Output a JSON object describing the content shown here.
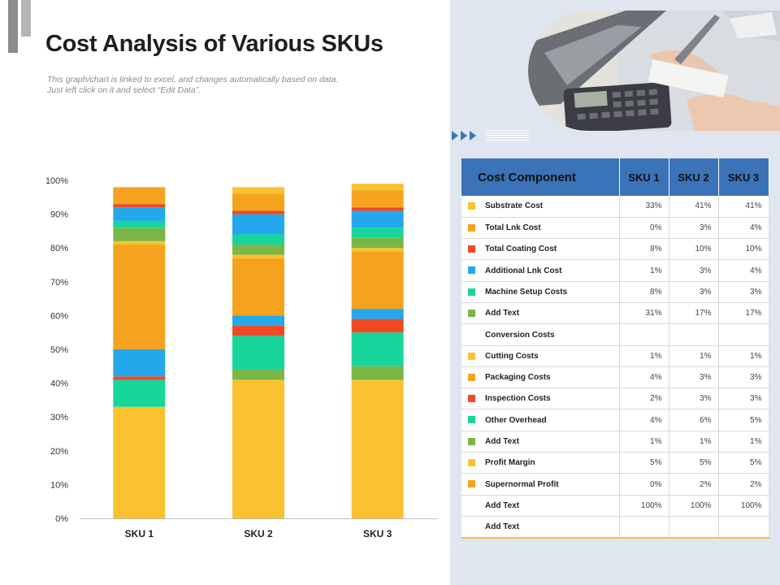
{
  "header": {
    "title": "Cost Analysis of Various SKUs",
    "subtitle_line1": "This graph/chart is linked to excel, and changes automatically based on data.",
    "subtitle_line2": "Just left click on it and select “Edit Data”."
  },
  "colors": {
    "accent": "#3a73b8",
    "panel": "#dfe6f0",
    "yellow": "#f9c22e",
    "orange": "#f5a31e",
    "red": "#ef4a25",
    "blue": "#24a8ec",
    "teal": "#16d69b",
    "green": "#7ab648"
  },
  "icons": [
    "double-chevron-arrows-icon",
    "horizontal-lines-icon"
  ],
  "chart_data": {
    "type": "bar",
    "stacked": true,
    "categories": [
      "SKU 1",
      "SKU 2",
      "SKU 3"
    ],
    "ylim": [
      0,
      100
    ],
    "yticks": [
      "0%",
      "10%",
      "20%",
      "30%",
      "40%",
      "50%",
      "60%",
      "70%",
      "80%",
      "90%",
      "100%"
    ],
    "grid": false,
    "series": [
      {
        "color": "#f9c22e",
        "values": [
          33,
          41,
          41
        ]
      },
      {
        "color": "#7ab648",
        "values": [
          0,
          3,
          4
        ]
      },
      {
        "color": "#16d69b",
        "values": [
          8,
          10,
          10
        ]
      },
      {
        "color": "#ef4a25",
        "values": [
          1,
          3,
          4
        ]
      },
      {
        "color": "#24a8ec",
        "values": [
          8,
          3,
          3
        ]
      },
      {
        "color": "#f5a31e",
        "values": [
          31,
          17,
          17
        ]
      },
      {
        "color": "#f9c22e",
        "values": [
          1,
          1,
          1
        ]
      },
      {
        "color": "#7ab648",
        "values": [
          4,
          3,
          3
        ]
      },
      {
        "color": "#16d69b",
        "values": [
          2,
          3,
          3
        ]
      },
      {
        "color": "#24a8ec",
        "values": [
          4,
          6,
          5
        ]
      },
      {
        "color": "#ef4a25",
        "values": [
          1,
          1,
          1
        ]
      },
      {
        "color": "#f5a31e",
        "values": [
          5,
          5,
          5
        ]
      },
      {
        "color": "#f9c22e",
        "values": [
          0,
          2,
          2
        ]
      }
    ]
  },
  "table": {
    "headers": [
      "Cost Component",
      "SKU 1",
      "SKU 2",
      "SKU 3"
    ],
    "rows": [
      {
        "label": "Substrate Cost",
        "color": "#f9c22e",
        "values": [
          "33%",
          "41%",
          "41%"
        ]
      },
      {
        "label": "Total Lnk Cost",
        "color": "#f5a31e",
        "values": [
          "0%",
          "3%",
          "4%"
        ]
      },
      {
        "label": "Total Coating Cost",
        "color": "#ef4a25",
        "values": [
          "8%",
          "10%",
          "10%"
        ]
      },
      {
        "label": "Additional Lnk Cost",
        "color": "#24a8ec",
        "values": [
          "1%",
          "3%",
          "4%"
        ]
      },
      {
        "label": "Machine Setup Costs",
        "color": "#16d69b",
        "values": [
          "8%",
          "3%",
          "3%"
        ]
      },
      {
        "label": "Add Text",
        "color": "#7ab648",
        "values": [
          "31%",
          "17%",
          "17%"
        ]
      },
      {
        "label": "Conversion Costs",
        "color": "",
        "values": [
          "",
          "",
          ""
        ]
      },
      {
        "label": "Cutting Costs",
        "color": "#f9c22e",
        "values": [
          "1%",
          "1%",
          "1%"
        ]
      },
      {
        "label": "Packaging Costs",
        "color": "#f5a31e",
        "values": [
          "4%",
          "3%",
          "3%"
        ]
      },
      {
        "label": "Inspection Costs",
        "color": "#ef4a25",
        "values": [
          "2%",
          "3%",
          "3%"
        ]
      },
      {
        "label": "Other Overhead",
        "color": "#16d69b",
        "values": [
          "4%",
          "6%",
          "5%"
        ]
      },
      {
        "label": "Add Text",
        "color": "#7ab648",
        "values": [
          "1%",
          "1%",
          "1%"
        ]
      },
      {
        "label": "Profit Margin",
        "color": "#f9c22e",
        "values": [
          "5%",
          "5%",
          "5%"
        ]
      },
      {
        "label": "Supernormal Profit",
        "color": "#f5a31e",
        "values": [
          "0%",
          "2%",
          "2%"
        ]
      },
      {
        "label": "Add Text",
        "color": "",
        "values": [
          "100%",
          "100%",
          "100%"
        ]
      },
      {
        "label": "Add Text",
        "color": "",
        "values": [
          "",
          "",
          ""
        ]
      }
    ]
  }
}
